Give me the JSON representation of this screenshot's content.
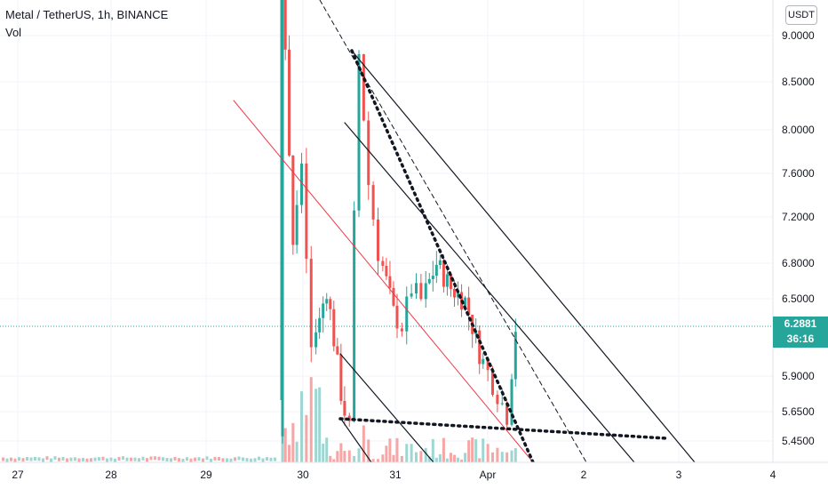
{
  "header": {
    "symbol_line": "Metal / TetherUS, 1h, BINANCE",
    "volume_label": "Vol"
  },
  "currency_button": "USDT",
  "last_price": {
    "value": "6.2881",
    "countdown": "36:16",
    "color": "#26a69a"
  },
  "colors": {
    "up": "#26a69a",
    "down": "#ef5350",
    "red_line": "#f23645",
    "grid": "#f0f3fa",
    "axis_text": "#131722"
  },
  "chart_data": {
    "type": "candlestick",
    "title": "Metal / TetherUS, 1h, BINANCE",
    "y_axis": {
      "scale": "log",
      "ticks": [
        "9.0000",
        "8.5000",
        "8.0000",
        "7.6000",
        "7.2000",
        "6.8000",
        "6.5000",
        "5.9000",
        "5.6500",
        "5.4500"
      ],
      "last_price": 6.2881
    },
    "x_axis": {
      "ticks": [
        "27",
        "28",
        "29",
        "30",
        "31",
        "Apr",
        "2",
        "3",
        "4"
      ]
    },
    "price_series": {
      "key_points": [
        {
          "date": "Mar 29 ~19:00",
          "value": 5.45
        },
        {
          "date": "Mar 29 ~20:00",
          "value": 9.6
        },
        {
          "date": "Mar 30 ~01:00",
          "value": 7.6
        },
        {
          "date": "Mar 30 ~03:00",
          "value": 6.1
        },
        {
          "date": "Mar 30 ~12:00",
          "value": 5.55
        },
        {
          "date": "Mar 30 ~13:00",
          "value": 8.2
        },
        {
          "date": "Mar 30 ~14:00",
          "value": 8.8
        },
        {
          "date": "Mar 30 ~20:00",
          "value": 6.5
        },
        {
          "date": "Mar 31 ~06:00",
          "value": 6.55
        },
        {
          "date": "Mar 31 ~12:00",
          "value": 6.8
        },
        {
          "date": "Apr 1 ~00:00",
          "value": 5.95
        },
        {
          "date": "Apr 1 ~04:00",
          "value": 5.65
        },
        {
          "date": "Apr 1 ~07:00",
          "value": 6.2881
        }
      ]
    },
    "legend": "none",
    "grid": true
  }
}
